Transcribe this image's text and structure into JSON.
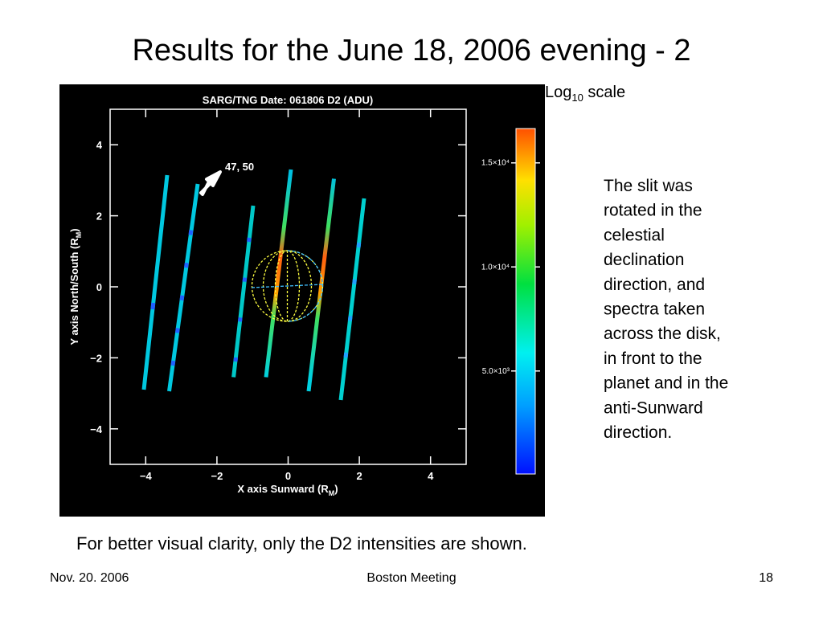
{
  "slide": {
    "title": "Results for the June 18, 2006 evening - 2",
    "scale_note": {
      "text": "Log",
      "sub": "10",
      "rest": " scale"
    },
    "paragraph": [
      "The slit was",
      "rotated in the",
      "celestial",
      "declination",
      "direction, and",
      "spectra taken",
      "across the disk,",
      "in front to the",
      "planet and in the",
      "anti-Sunward",
      "direction."
    ],
    "note": "For better visual clarity, only the D2 intensities are shown.",
    "footer": {
      "left": "Nov. 20. 2006",
      "center": "Boston Meeting",
      "right": "18"
    }
  },
  "chart_data": {
    "type": "image-plot",
    "title": "SARG/TNG Date: 061806 D2 (ADU)",
    "xlabel": {
      "text": "X axis Sunward (R",
      "sub": "M",
      "end": ")"
    },
    "ylabel": {
      "text": "Y axis North/South (R",
      "sub": "M",
      "end": ")"
    },
    "annotation": "47, 50",
    "xlim": [
      -5,
      5
    ],
    "ylim": [
      -5,
      5
    ],
    "xticks": [
      {
        "value": -4,
        "label": "−4"
      },
      {
        "value": -2,
        "label": "−2"
      },
      0,
      2,
      4
    ],
    "yticks": [
      {
        "value": -4,
        "label": "−4"
      },
      {
        "value": -2,
        "label": "−2"
      },
      0,
      2,
      4
    ],
    "colorbar": {
      "lim": [
        50,
        16650
      ],
      "ticks": [
        {
          "value": 5000,
          "label": "5.0×10³"
        },
        {
          "value": 10000,
          "label": "1.0×10⁴"
        },
        {
          "value": 15000,
          "label": "1.5×10⁴"
        }
      ]
    }
  }
}
